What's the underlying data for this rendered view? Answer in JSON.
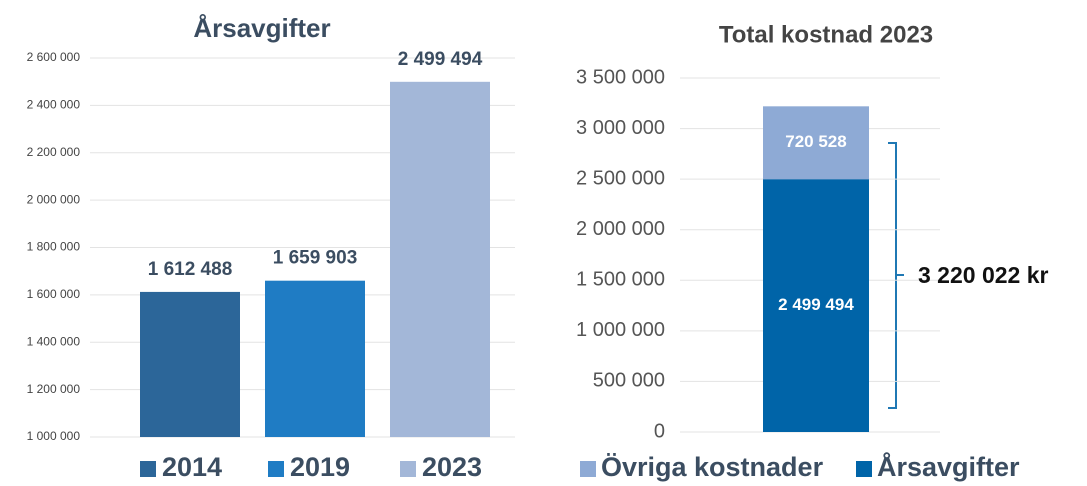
{
  "chart_data": [
    {
      "type": "bar",
      "title": "Årsavgifter",
      "categories": [
        "2014",
        "2019",
        "2023"
      ],
      "values": [
        1612488,
        1659903,
        2499494
      ],
      "value_labels": [
        "1 612 488",
        "1 659 903",
        "2 499 494"
      ],
      "colors": [
        "#2c6699",
        "#1f7cc4",
        "#a3b7d8"
      ],
      "ylim": [
        1000000,
        2600000
      ],
      "yticks": [
        {
          "value": 1000000,
          "label": "1 000 000"
        },
        {
          "value": 1200000,
          "label": "1 200 000"
        },
        {
          "value": 1400000,
          "label": "1 400 000"
        },
        {
          "value": 1600000,
          "label": "1 600 000"
        },
        {
          "value": 1800000,
          "label": "1 800 000"
        },
        {
          "value": 2000000,
          "label": "2 000 000"
        },
        {
          "value": 2200000,
          "label": "2 200 000"
        },
        {
          "value": 2400000,
          "label": "2 400 000"
        },
        {
          "value": 2600000,
          "label": "2 600 000"
        }
      ],
      "grid": true,
      "legend": "bottom"
    },
    {
      "type": "stacked_bar",
      "title": "Total kostnad 2023",
      "series": [
        {
          "name": "Årsavgifter",
          "color": "#0064a8",
          "values": [
            2499494
          ],
          "value_labels": [
            "2 499 494"
          ]
        },
        {
          "name": "Övriga kostnader",
          "color": "#8eaad5",
          "values": [
            720528
          ],
          "value_labels": [
            "720 528"
          ]
        }
      ],
      "annotation": "3 220 022 kr",
      "ylim": [
        0,
        3500000
      ],
      "yticks": [
        0,
        {
          "value": 500000,
          "label": "500 000"
        },
        {
          "value": 1000000,
          "label": "1 000 000"
        },
        {
          "value": 1500000,
          "label": "1 500 000"
        },
        {
          "value": 2000000,
          "label": "2 000 000"
        },
        {
          "value": 2500000,
          "label": "2 500 000"
        },
        {
          "value": 3000000,
          "label": "3 000 000"
        },
        {
          "value": 3500000,
          "label": "3 500 000"
        }
      ],
      "grid": true,
      "legend": "bottom"
    }
  ]
}
